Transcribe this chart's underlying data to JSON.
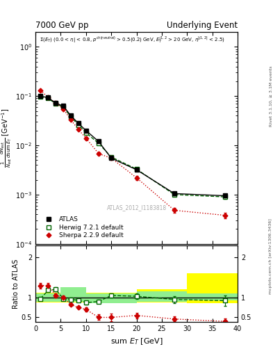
{
  "title_left": "7000 GeV pp",
  "title_right": "Underlying Event",
  "watermark": "ATLAS_2012_I1183818",
  "atlas_x": [
    1.0,
    2.5,
    4.0,
    5.5,
    7.0,
    8.5,
    10.0,
    12.5,
    15.0,
    20.0,
    27.5,
    37.5
  ],
  "atlas_y": [
    0.1,
    0.093,
    0.072,
    0.063,
    0.04,
    0.028,
    0.02,
    0.012,
    0.0055,
    0.0032,
    0.00105,
    0.00095
  ],
  "atlas_yerr": [
    0.004,
    0.003,
    0.003,
    0.002,
    0.002,
    0.001,
    0.001,
    0.0007,
    0.0003,
    0.0002,
    8e-05,
    8e-05
  ],
  "herwig_x": [
    1.0,
    2.5,
    4.0,
    5.5,
    7.0,
    8.5,
    10.0,
    12.5,
    15.0,
    20.0,
    27.5,
    37.5
  ],
  "herwig_y": [
    0.097,
    0.09,
    0.07,
    0.06,
    0.038,
    0.026,
    0.018,
    0.011,
    0.0058,
    0.0033,
    0.001,
    0.0009
  ],
  "herwig_yerr": [
    0.003,
    0.003,
    0.002,
    0.002,
    0.001,
    0.001,
    0.001,
    0.0006,
    0.0003,
    0.0002,
    8e-05,
    8e-05
  ],
  "sherpa_x": [
    1.0,
    2.5,
    4.0,
    5.5,
    7.0,
    8.5,
    10.0,
    12.5,
    15.0,
    20.0,
    27.5,
    37.5
  ],
  "sherpa_y": [
    0.13,
    0.095,
    0.072,
    0.055,
    0.033,
    0.021,
    0.014,
    0.0068,
    0.0055,
    0.0022,
    0.00048,
    0.00038
  ],
  "sherpa_yerr": [
    0.005,
    0.003,
    0.002,
    0.002,
    0.001,
    0.001,
    0.001,
    0.0005,
    0.0004,
    0.0002,
    5e-05,
    5e-05
  ],
  "herwig_ratio_x": [
    1.0,
    2.5,
    4.0,
    5.5,
    7.0,
    8.5,
    10.0,
    12.5,
    15.0,
    20.0,
    27.5,
    37.5
  ],
  "herwig_ratio_y": [
    0.97,
    1.18,
    1.2,
    0.97,
    0.95,
    0.93,
    0.87,
    0.9,
    1.05,
    1.03,
    0.95,
    0.92
  ],
  "herwig_ratio_yerr": [
    0.04,
    0.05,
    0.05,
    0.04,
    0.04,
    0.04,
    0.04,
    0.05,
    0.06,
    0.07,
    0.09,
    0.13
  ],
  "sherpa_ratio_x": [
    1.0,
    2.5,
    4.0,
    5.5,
    7.0,
    8.5,
    10.0,
    12.5,
    15.0,
    20.0,
    27.5,
    37.5
  ],
  "sherpa_ratio_y": [
    1.3,
    1.3,
    1.05,
    1.0,
    0.82,
    0.75,
    0.7,
    0.5,
    0.5,
    0.55,
    0.46,
    0.4
  ],
  "sherpa_ratio_yerr": [
    0.07,
    0.06,
    0.05,
    0.05,
    0.04,
    0.04,
    0.05,
    0.07,
    0.09,
    0.07,
    0.06,
    0.07
  ],
  "yellow_band_edges": [
    0,
    5,
    10,
    20,
    30,
    40
  ],
  "yellow_band_lo": [
    0.88,
    0.88,
    0.88,
    0.88,
    0.85,
    0.82
  ],
  "yellow_band_hi": [
    1.12,
    1.12,
    1.12,
    1.2,
    1.6,
    2.0
  ],
  "green_band_edges": [
    0,
    5,
    10,
    20,
    30,
    40
  ],
  "green_band_lo": [
    0.9,
    0.9,
    0.85,
    0.9,
    0.92,
    0.88
  ],
  "green_band_hi": [
    1.1,
    1.25,
    1.1,
    1.15,
    1.1,
    1.08
  ],
  "atlas_color": "#000000",
  "herwig_color": "#006400",
  "sherpa_color": "#cc0000",
  "green_band_color": "#90EE90",
  "yellow_band_color": "#FFFF00",
  "ylim_main": [
    0.0001,
    2.0
  ],
  "ylim_ratio": [
    0.38,
    2.3
  ],
  "xlim": [
    0,
    40
  ]
}
